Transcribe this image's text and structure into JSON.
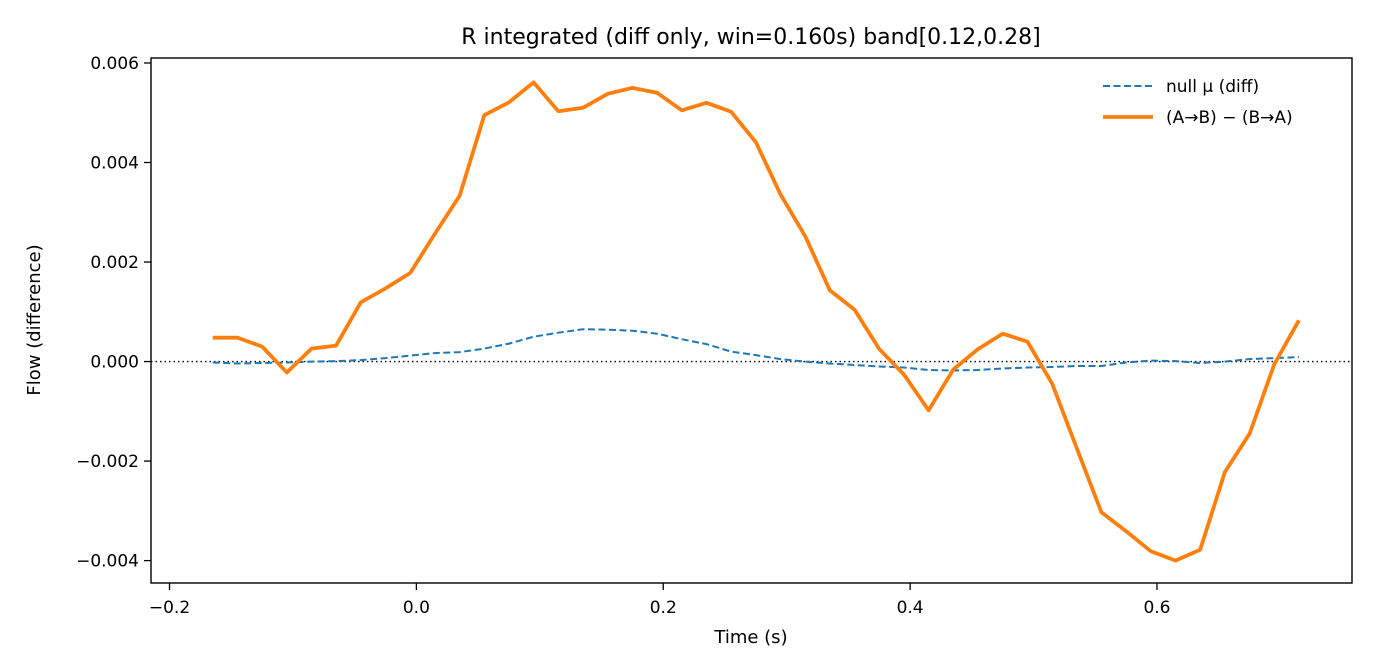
{
  "chart_data": {
    "type": "line",
    "title": "R integrated (diff only, win=0.160s)   band[0.12,0.28]",
    "xlabel": "Time (s)",
    "ylabel": "Flow (difference)",
    "xlim": [
      -0.215,
      0.758
    ],
    "ylim": [
      -0.00445,
      0.0061
    ],
    "xticks": [
      -0.2,
      0.0,
      0.2,
      0.4,
      0.6
    ],
    "xtick_labels": [
      "−0.2",
      "0.0",
      "0.2",
      "0.4",
      "0.6"
    ],
    "yticks": [
      -0.004,
      -0.002,
      0.0,
      0.002,
      0.004,
      0.006
    ],
    "ytick_labels": [
      "−0.004",
      "−0.002",
      "0.000",
      "0.002",
      "0.004",
      "0.006"
    ],
    "grid": false,
    "legend_position": "top-right",
    "zero_line": true,
    "x": [
      -0.165,
      -0.145,
      -0.125,
      -0.105,
      -0.085,
      -0.065,
      -0.045,
      -0.025,
      -0.005,
      0.015,
      0.035,
      0.055,
      0.075,
      0.095,
      0.115,
      0.135,
      0.155,
      0.175,
      0.195,
      0.215,
      0.235,
      0.255,
      0.275,
      0.295,
      0.315,
      0.335,
      0.355,
      0.375,
      0.395,
      0.415,
      0.435,
      0.455,
      0.475,
      0.495,
      0.515,
      0.535,
      0.555,
      0.575,
      0.595,
      0.615,
      0.635,
      0.655,
      0.675,
      0.695,
      0.715
    ],
    "series": [
      {
        "name": "null μ (diff)",
        "color": "#1f77b4",
        "style": "dashed",
        "values": [
          -2e-05,
          -4e-05,
          -3e-05,
          -2e-05,
          0.0,
          1e-05,
          3e-05,
          7e-05,
          0.00012,
          0.00017,
          0.00019,
          0.00026,
          0.00036,
          0.0005,
          0.00058,
          0.00065,
          0.00064,
          0.00062,
          0.00056,
          0.00045,
          0.00035,
          0.0002,
          0.00013,
          5e-05,
          0.0,
          -4e-05,
          -7e-05,
          -0.0001,
          -0.00012,
          -0.00017,
          -0.00018,
          -0.00017,
          -0.00014,
          -0.00012,
          -0.00011,
          -9e-05,
          -9e-05,
          -2e-05,
          2e-05,
          1e-05,
          -3e-05,
          0.0,
          5e-05,
          7e-05,
          9e-05
        ]
      },
      {
        "name": "(A→B) − (B→A)",
        "color": "#ff7f0e",
        "style": "solid",
        "values": [
          0.00048,
          0.00048,
          0.0003,
          -0.00022,
          0.00026,
          0.00032,
          0.00119,
          0.00147,
          0.00178,
          0.00257,
          0.00333,
          0.00495,
          0.00521,
          0.00561,
          0.00503,
          0.0051,
          0.00538,
          0.0055,
          0.0054,
          0.00505,
          0.0052,
          0.00502,
          0.00441,
          0.00336,
          0.00252,
          0.00143,
          0.00104,
          0.00025,
          -0.00026,
          -0.00098,
          -0.00016,
          0.00025,
          0.00056,
          0.0004,
          -0.00044,
          -0.00174,
          -0.00303,
          -0.00341,
          -0.00381,
          -0.004,
          -0.00378,
          -0.00222,
          -0.00145,
          -6e-05,
          0.00083
        ]
      }
    ]
  }
}
